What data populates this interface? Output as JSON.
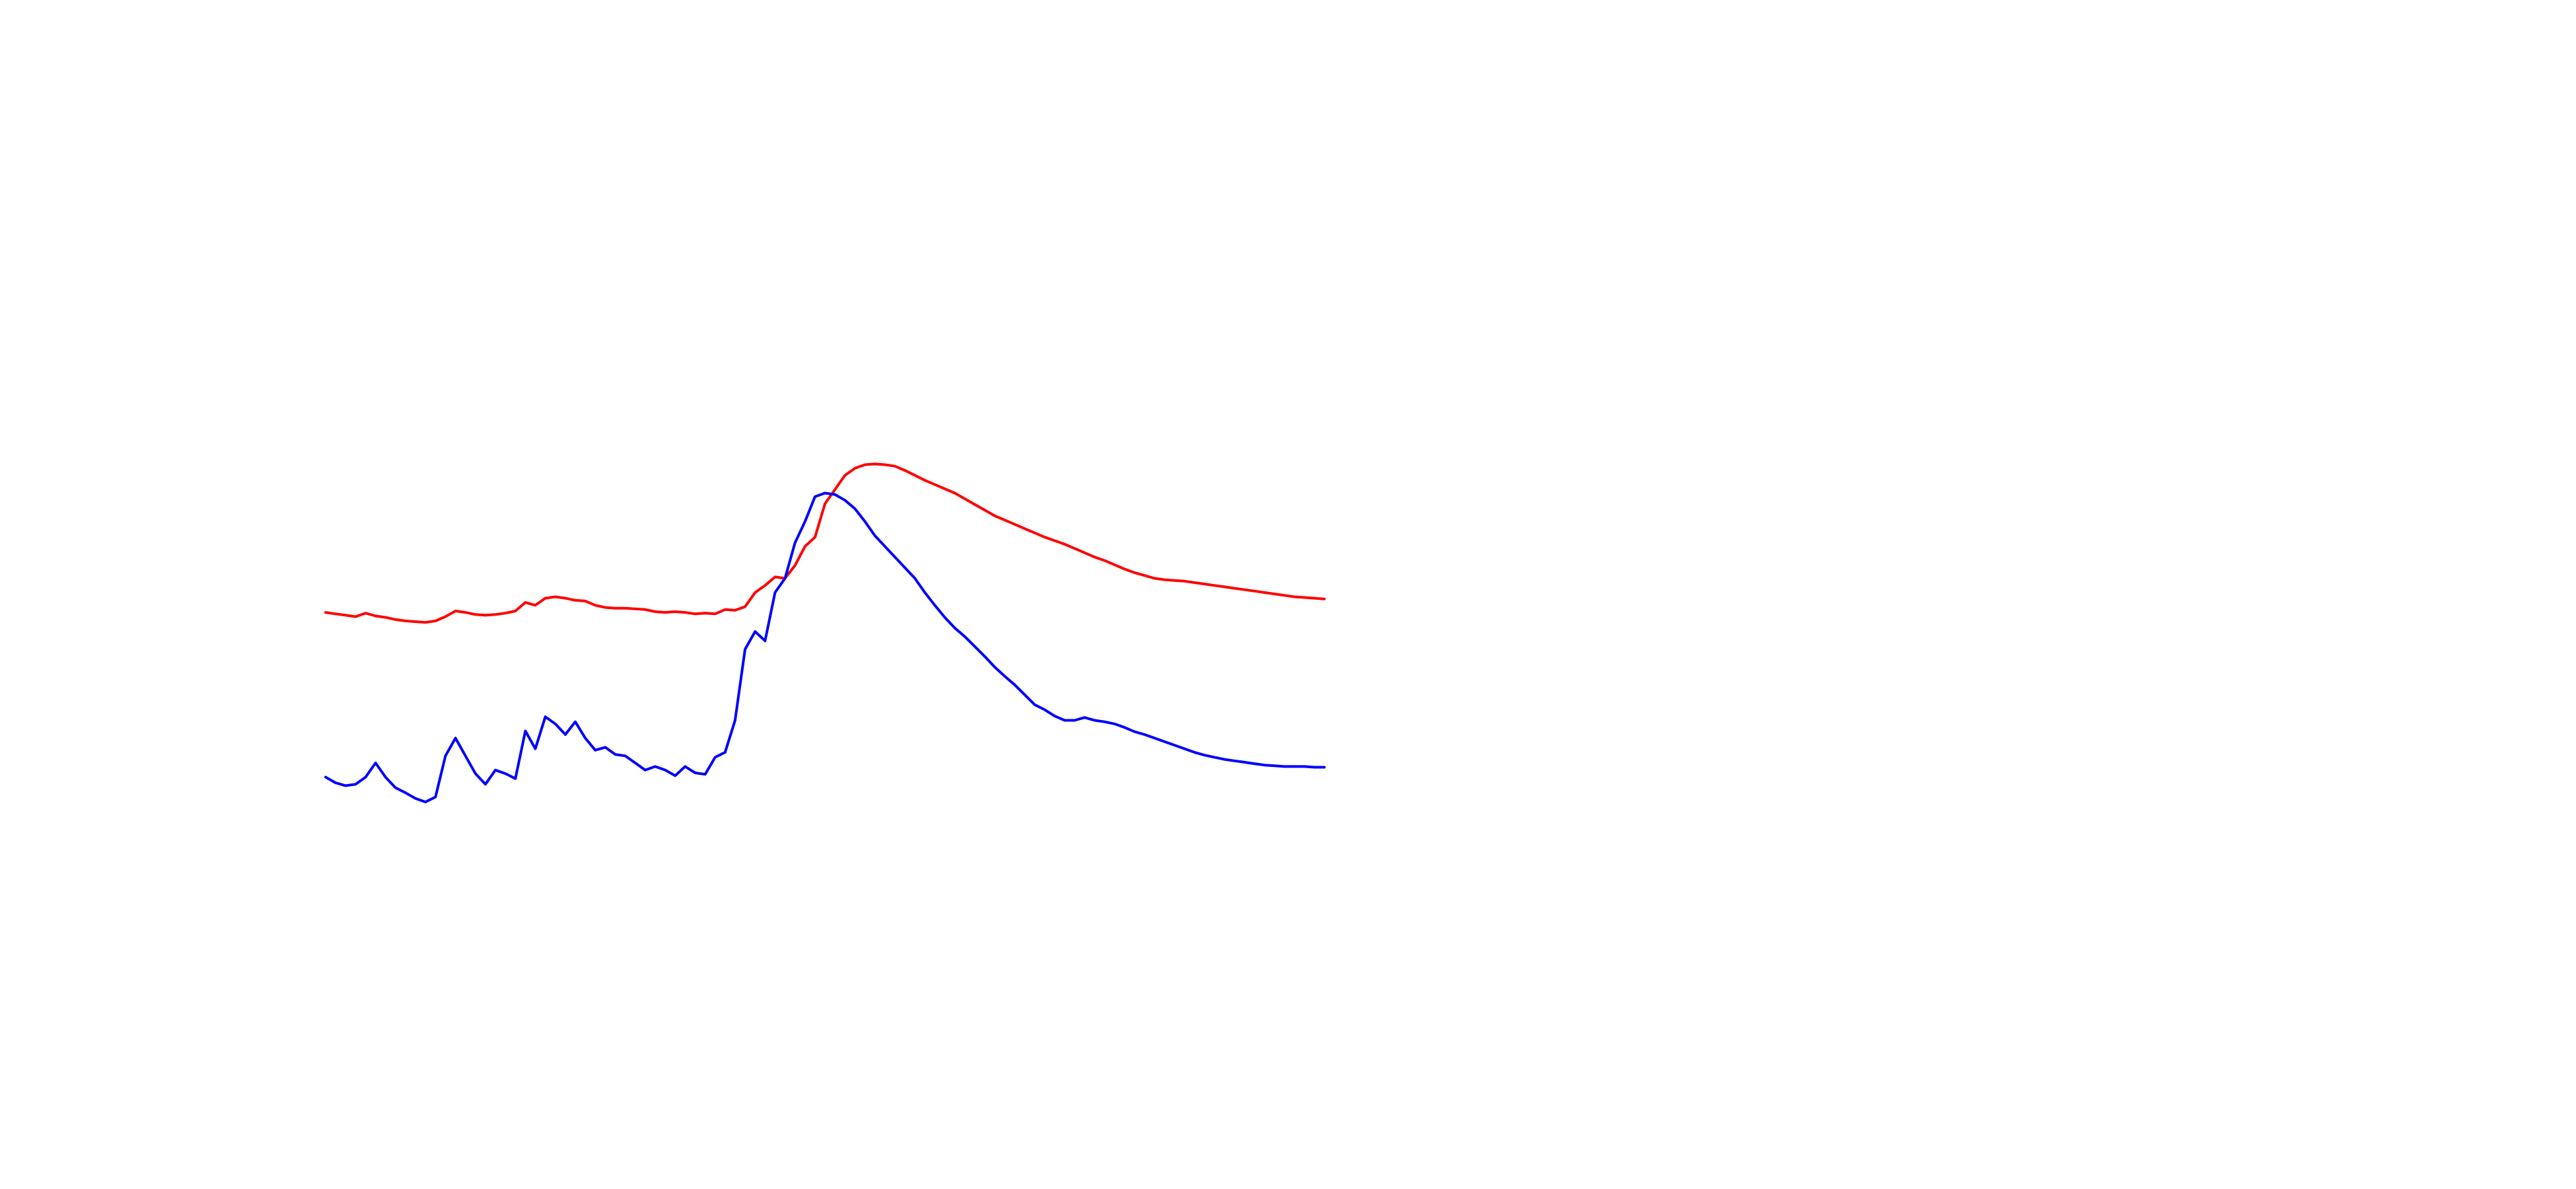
{
  "chart_data": {
    "type": "line",
    "title": "",
    "xlabel": "",
    "ylabel": "",
    "grid": false,
    "axes_visible": false,
    "legend": "none",
    "xlim": [
      0,
      100
    ],
    "ylim": [
      0,
      100
    ],
    "series": [
      {
        "color": "#ff0000",
        "x": [
          0,
          1,
          2,
          3,
          4,
          5,
          6,
          7,
          8,
          9,
          10,
          11,
          12,
          13,
          14,
          15,
          16,
          17,
          18,
          19,
          20,
          21,
          22,
          23,
          24,
          25,
          26,
          27,
          28,
          29,
          30,
          31,
          32,
          33,
          34,
          35,
          36,
          37,
          38,
          39,
          40,
          41,
          42,
          43,
          44,
          45,
          46,
          47,
          48,
          49,
          50,
          51,
          52,
          53,
          54,
          55,
          56,
          57,
          58,
          59,
          60,
          61,
          62,
          63,
          64,
          65,
          66,
          67,
          68,
          69,
          70,
          71,
          72,
          73,
          74,
          75,
          76,
          77,
          78,
          79,
          80,
          81,
          82,
          83,
          84,
          85,
          86,
          87,
          88,
          89,
          90,
          91,
          92,
          93,
          94,
          95,
          96,
          97,
          98,
          99,
          100
        ],
        "y": [
          45.2,
          45.0,
          44.8,
          44.6,
          45.1,
          44.7,
          44.5,
          44.2,
          44.0,
          43.9,
          43.8,
          44.0,
          44.6,
          45.4,
          45.2,
          44.9,
          44.8,
          44.9,
          45.1,
          45.4,
          46.6,
          46.2,
          47.2,
          47.4,
          47.2,
          46.9,
          46.8,
          46.2,
          45.9,
          45.8,
          45.8,
          45.7,
          45.6,
          45.3,
          45.2,
          45.3,
          45.2,
          45.0,
          45.1,
          45.0,
          45.6,
          45.5,
          46.0,
          48.0,
          49.0,
          50.2,
          50.0,
          51.8,
          54.5,
          55.8,
          60.5,
          62.5,
          64.5,
          65.5,
          66.0,
          66.1,
          66.0,
          65.8,
          65.2,
          64.5,
          63.8,
          63.2,
          62.6,
          62.0,
          61.2,
          60.4,
          59.6,
          58.8,
          58.2,
          57.6,
          57.0,
          56.4,
          55.8,
          55.3,
          54.8,
          54.2,
          53.6,
          53.0,
          52.5,
          51.9,
          51.3,
          50.8,
          50.4,
          50.0,
          49.8,
          49.7,
          49.6,
          49.4,
          49.2,
          49.0,
          48.8,
          48.6,
          48.4,
          48.2,
          48.0,
          47.8,
          47.6,
          47.4,
          47.3,
          47.2,
          47.1
        ]
      },
      {
        "color": "#0000ff",
        "x": [
          0,
          1,
          2,
          3,
          4,
          5,
          6,
          7,
          8,
          9,
          10,
          11,
          12,
          13,
          14,
          15,
          16,
          17,
          18,
          19,
          20,
          21,
          22,
          23,
          24,
          25,
          26,
          27,
          28,
          29,
          30,
          31,
          32,
          33,
          34,
          35,
          36,
          37,
          38,
          39,
          40,
          41,
          42,
          43,
          44,
          45,
          46,
          47,
          48,
          49,
          50,
          51,
          52,
          53,
          54,
          55,
          56,
          57,
          58,
          59,
          60,
          61,
          62,
          63,
          64,
          65,
          66,
          67,
          68,
          69,
          70,
          71,
          72,
          73,
          74,
          75,
          76,
          77,
          78,
          79,
          80,
          81,
          82,
          83,
          84,
          85,
          86,
          87,
          88,
          89,
          90,
          91,
          92,
          93,
          94,
          95,
          96,
          97,
          98,
          99,
          100
        ],
        "y": [
          22.0,
          21.2,
          20.8,
          21.0,
          22.0,
          24.0,
          22.0,
          20.5,
          19.8,
          19.0,
          18.5,
          19.2,
          25.0,
          27.5,
          25.0,
          22.5,
          21.0,
          23.0,
          22.5,
          21.8,
          28.5,
          26.0,
          30.5,
          29.5,
          28.0,
          29.8,
          27.5,
          25.8,
          26.2,
          25.2,
          25.0,
          24.0,
          23.0,
          23.5,
          23.0,
          22.2,
          23.5,
          22.6,
          22.4,
          24.8,
          25.5,
          30.0,
          40.0,
          42.5,
          41.2,
          48.0,
          50.0,
          55.0,
          58.0,
          61.5,
          62.0,
          61.8,
          61.0,
          59.8,
          58.0,
          56.0,
          54.5,
          53.0,
          51.5,
          50.0,
          48.0,
          46.2,
          44.5,
          43.0,
          41.8,
          40.4,
          39.0,
          37.5,
          36.2,
          35.0,
          33.6,
          32.2,
          31.5,
          30.6,
          30.0,
          30.0,
          30.4,
          30.0,
          29.8,
          29.5,
          29.0,
          28.4,
          28.0,
          27.5,
          27.0,
          26.5,
          26.0,
          25.5,
          25.1,
          24.8,
          24.5,
          24.3,
          24.1,
          23.9,
          23.7,
          23.6,
          23.5,
          23.5,
          23.5,
          23.4,
          23.4
        ]
      }
    ]
  }
}
